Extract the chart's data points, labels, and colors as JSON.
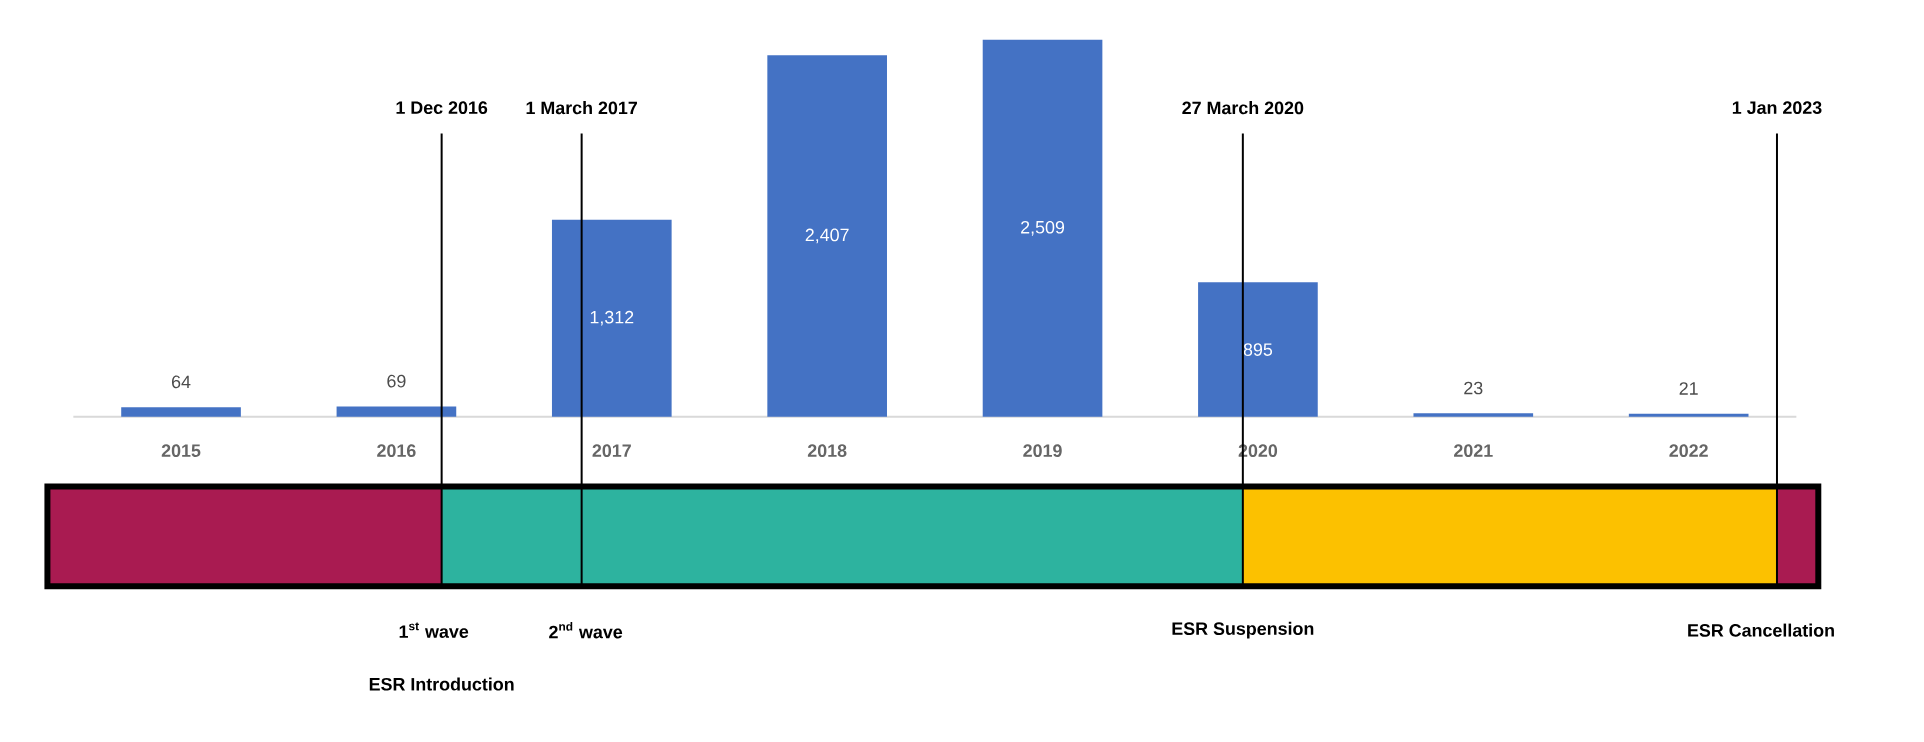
{
  "chart_data": {
    "type": "bar",
    "x": [
      2015,
      2016,
      2017,
      2018,
      2019,
      2020,
      2021,
      2022
    ],
    "values": [
      64,
      69,
      1312,
      2407,
      2509,
      895,
      23,
      21
    ],
    "value_labels": [
      "64",
      "69",
      "1,312",
      "2,407",
      "2,509",
      "895",
      "23",
      "21"
    ],
    "color": "#4472c4",
    "xlim": [
      2014.5,
      2022.5
    ],
    "xticks": [
      2015,
      2016,
      2017,
      2018,
      2019,
      2020,
      2021,
      2022
    ],
    "tick_labels": "x",
    "ref_lines": [
      {
        "axis": "x",
        "value": 2016.21,
        "label": "1 Dec 2016",
        "color": "#000000"
      },
      {
        "axis": "x",
        "value": 2016.86,
        "label": "1 March 2017",
        "color": "#000000"
      },
      {
        "axis": "x",
        "value": 2019.93,
        "label": "27 March 2020",
        "color": "#000000"
      },
      {
        "axis": "x",
        "value": 2022.41,
        "label": "1 Jan 2023",
        "color": "#000000"
      }
    ],
    "annotations": [
      "1$^{st}$ wave",
      "2$^{nd}$ wave",
      "ESR Introduction",
      "ESR Suspension",
      "ESR Cancellation"
    ]
  }
}
